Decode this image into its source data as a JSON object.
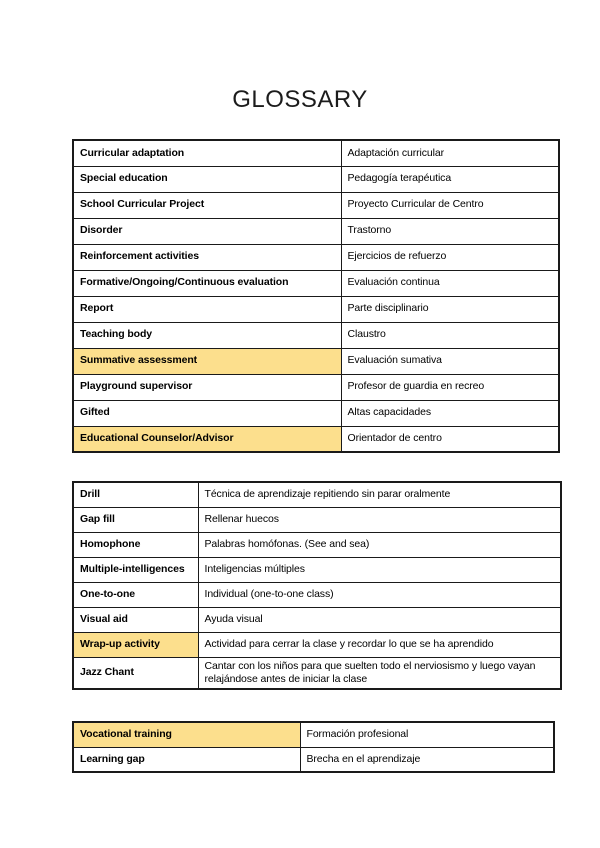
{
  "page": {
    "title": "GLOSSARY"
  },
  "colors": {
    "highlight": "#fcdf8d",
    "border": "#1a1a1a"
  },
  "tables": [
    {
      "name": "school-terms-table",
      "rows": [
        {
          "term": "Curricular adaptation",
          "translation": "Adaptación curricular",
          "highlight": false
        },
        {
          "term": "Special education",
          "translation": "Pedagogía terapéutica",
          "highlight": false
        },
        {
          "term": "School Curricular Project",
          "translation": "Proyecto Curricular de Centro",
          "highlight": false
        },
        {
          "term": "Disorder",
          "translation": "Trastorno",
          "highlight": false
        },
        {
          "term": "Reinforcement activities",
          "translation": "Ejercicios de refuerzo",
          "highlight": false
        },
        {
          "term": "Formative/Ongoing/Continuous evaluation",
          "translation": "Evaluación continua",
          "highlight": false
        },
        {
          "term": "Report",
          "translation": "Parte disciplinario",
          "highlight": false
        },
        {
          "term": "Teaching body",
          "translation": "Claustro",
          "highlight": false
        },
        {
          "term": "Summative assessment",
          "translation": "Evaluación sumativa",
          "highlight": true
        },
        {
          "term": "Playground supervisor",
          "translation": "Profesor de guardia en recreo",
          "highlight": false
        },
        {
          "term": "Gifted",
          "translation": "Altas capacidades",
          "highlight": false
        },
        {
          "term": "Educational Counselor/Advisor",
          "translation": "Orientador de centro",
          "highlight": true
        }
      ]
    },
    {
      "name": "classroom-terms-table",
      "rows": [
        {
          "term": "Drill",
          "translation": "Técnica de aprendizaje repitiendo sin parar oralmente",
          "highlight": false
        },
        {
          "term": "Gap fill",
          "translation": "Rellenar huecos",
          "highlight": false
        },
        {
          "term": "Homophone",
          "translation": "Palabras homófonas. (See and sea)",
          "highlight": false
        },
        {
          "term": "Multiple-intelligences",
          "translation": "Inteligencias múltiples",
          "highlight": false
        },
        {
          "term": "One-to-one",
          "translation": "Individual (one-to-one class)",
          "highlight": false
        },
        {
          "term": "Visual aid",
          "translation": "Ayuda visual",
          "highlight": false
        },
        {
          "term": "Wrap-up activity",
          "translation": "Actividad para cerrar la clase y recordar lo que se ha aprendido",
          "highlight": true
        },
        {
          "term": "Jazz Chant",
          "translation": "Cantar con los niños para que suelten todo el nerviosismo y luego vayan relajándose antes de iniciar la clase",
          "highlight": false
        }
      ]
    },
    {
      "name": "extra-terms-table",
      "rows": [
        {
          "term": "Vocational training",
          "translation": "Formación profesional",
          "highlight": true
        },
        {
          "term": "Learning gap",
          "translation": "Brecha en el aprendizaje",
          "highlight": false
        }
      ]
    }
  ]
}
